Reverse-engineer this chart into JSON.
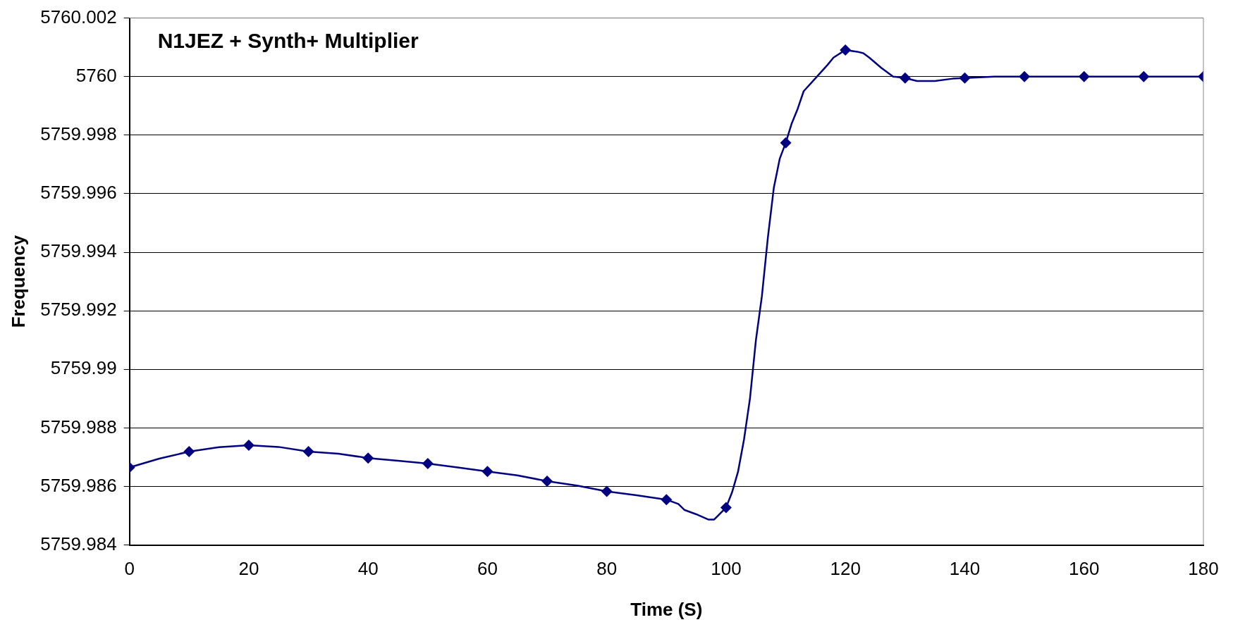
{
  "chart_data": {
    "type": "line",
    "title": "N1JEZ + Synth+ Multiplier",
    "xlabel": "Time (S)",
    "ylabel": "Frequency",
    "series": [
      {
        "type": "line",
        "color": "#000080",
        "marker": "none",
        "x": [
          0,
          5,
          10,
          15,
          20,
          25,
          30,
          35,
          40,
          45,
          50,
          55,
          60,
          65,
          70,
          75,
          80,
          85,
          90,
          92,
          93,
          95,
          97,
          98,
          100,
          101,
          102,
          103,
          104,
          105,
          106,
          107,
          108,
          109,
          110,
          111,
          112,
          113,
          115,
          117,
          118,
          120,
          122,
          123,
          124,
          126,
          128,
          130,
          132,
          135,
          138,
          140,
          145,
          150,
          160,
          170,
          180
        ],
        "values": [
          5759.98665,
          5759.98695,
          5759.98719,
          5759.98734,
          5759.98741,
          5759.98735,
          5759.98719,
          5759.98712,
          5759.98697,
          5759.98688,
          5759.98678,
          5759.98665,
          5759.98651,
          5759.98638,
          5759.98618,
          5759.98603,
          5759.98583,
          5759.9857,
          5759.98555,
          5759.9854,
          5759.9852,
          5759.98505,
          5759.98487,
          5759.98487,
          5759.98528,
          5759.9858,
          5759.9865,
          5759.9876,
          5759.989,
          5759.991,
          5759.9925,
          5759.9945,
          5759.9962,
          5759.9972,
          5759.99774,
          5759.9984,
          5759.9989,
          5759.9995,
          5759.99995,
          5760.0004,
          5760.00065,
          5760.00091,
          5760.00085,
          5760.0008,
          5760.00065,
          5760.0003,
          5760.0,
          5759.99995,
          5759.99985,
          5759.99985,
          5759.99993,
          5759.99995,
          5760.0,
          5760.0,
          5760.0,
          5760.0,
          5760.0
        ]
      },
      {
        "type": "scatter",
        "color": "#000080",
        "marker": "diamond",
        "x": [
          0,
          10,
          20,
          30,
          40,
          50,
          60,
          70,
          80,
          90,
          100,
          110,
          120,
          130,
          140,
          150,
          160,
          170,
          180
        ],
        "values": [
          5759.98665,
          5759.98719,
          5759.98741,
          5759.98719,
          5759.98697,
          5759.98678,
          5759.98651,
          5759.98618,
          5759.98583,
          5759.98555,
          5759.98528,
          5759.99774,
          5760.00091,
          5759.99995,
          5759.99995,
          5760.0,
          5760.0,
          5760.0,
          5760.0
        ]
      }
    ],
    "xlim": [
      0,
      180
    ],
    "xticks": [
      0,
      20,
      40,
      60,
      80,
      100,
      120,
      140,
      160,
      180
    ],
    "ylim": [
      5759.984,
      5760.002
    ],
    "yticks": [
      5759.984,
      5759.986,
      5759.988,
      5759.99,
      5759.992,
      5759.994,
      5759.996,
      5759.998,
      5760,
      5760.002
    ],
    "grid": "y",
    "legend": false
  }
}
